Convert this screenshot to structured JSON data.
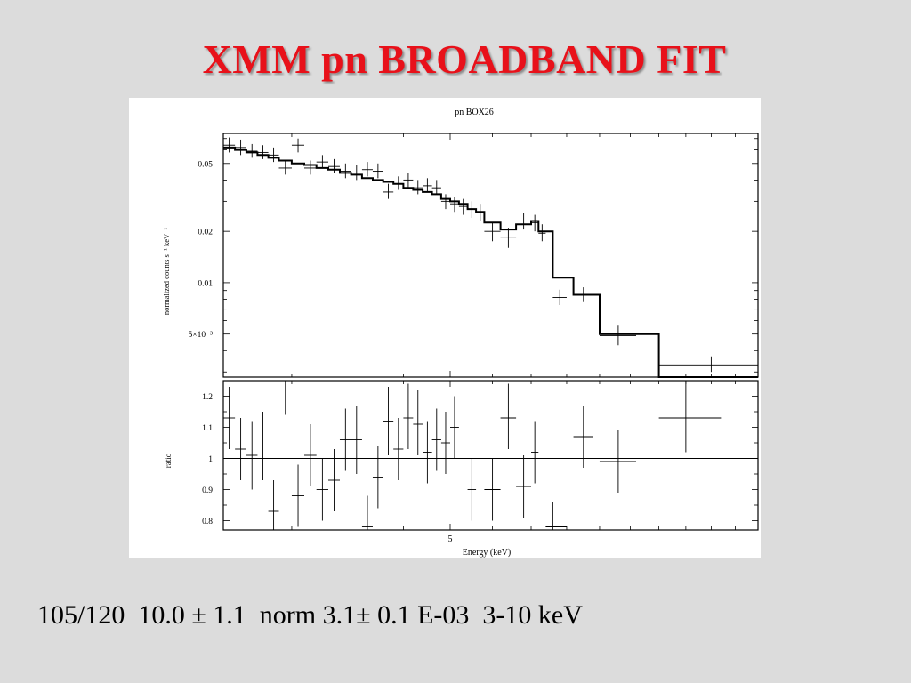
{
  "slide": {
    "title": "XMM pn BROADBAND FIT",
    "caption": "105/120  10.0 ± 1.1  norm 3.1± 0.1 E-03  3-10 keV",
    "title_color": "#e8111a",
    "background": "#dcdcdc"
  },
  "chart_data": [
    {
      "type": "scatter",
      "panel": "spectrum",
      "title": "pn BOX26",
      "xlabel": "Energy (keV)",
      "ylabel": "normalized counts s⁻¹ keV⁻¹",
      "xlim": [
        3,
        10
      ],
      "ylim": [
        0.0028,
        0.075
      ],
      "yscale": "log",
      "xscale": "log",
      "xticks": [
        {
          "value": 5,
          "label": "5"
        }
      ],
      "yticks": [
        {
          "value": 0.05,
          "label": "0.05"
        },
        {
          "value": 0.02,
          "label": "0.02"
        },
        {
          "value": 0.01,
          "label": "0.01"
        },
        {
          "value": 0.005,
          "label": "5×10⁻³"
        }
      ],
      "series": [
        {
          "kind": "data_points",
          "points": [
            {
              "x": 3.04,
              "xlo": 3.0,
              "xhi": 3.08,
              "y": 0.064,
              "ylo": 0.058,
              "yhi": 0.071
            },
            {
              "x": 3.12,
              "xlo": 3.08,
              "xhi": 3.16,
              "y": 0.062,
              "ylo": 0.056,
              "yhi": 0.069
            },
            {
              "x": 3.2,
              "xlo": 3.16,
              "xhi": 3.24,
              "y": 0.059,
              "ylo": 0.054,
              "yhi": 0.065
            },
            {
              "x": 3.28,
              "xlo": 3.24,
              "xhi": 3.32,
              "y": 0.058,
              "ylo": 0.053,
              "yhi": 0.064
            },
            {
              "x": 3.36,
              "xlo": 3.32,
              "xhi": 3.4,
              "y": 0.056,
              "ylo": 0.051,
              "yhi": 0.062
            },
            {
              "x": 3.45,
              "xlo": 3.4,
              "xhi": 3.5,
              "y": 0.047,
              "ylo": 0.043,
              "yhi": 0.052
            },
            {
              "x": 3.55,
              "xlo": 3.5,
              "xhi": 3.6,
              "y": 0.064,
              "ylo": 0.058,
              "yhi": 0.07
            },
            {
              "x": 3.65,
              "xlo": 3.6,
              "xhi": 3.7,
              "y": 0.047,
              "ylo": 0.043,
              "yhi": 0.052
            },
            {
              "x": 3.75,
              "xlo": 3.7,
              "xhi": 3.8,
              "y": 0.051,
              "ylo": 0.047,
              "yhi": 0.056
            },
            {
              "x": 3.85,
              "xlo": 3.8,
              "xhi": 3.9,
              "y": 0.048,
              "ylo": 0.044,
              "yhi": 0.053
            },
            {
              "x": 3.95,
              "xlo": 3.9,
              "xhi": 4.0,
              "y": 0.045,
              "ylo": 0.041,
              "yhi": 0.05
            },
            {
              "x": 4.05,
              "xlo": 4.0,
              "xhi": 4.1,
              "y": 0.044,
              "ylo": 0.04,
              "yhi": 0.049
            },
            {
              "x": 4.15,
              "xlo": 4.1,
              "xhi": 4.2,
              "y": 0.046,
              "ylo": 0.042,
              "yhi": 0.051
            },
            {
              "x": 4.25,
              "xlo": 4.2,
              "xhi": 4.3,
              "y": 0.045,
              "ylo": 0.041,
              "yhi": 0.05
            },
            {
              "x": 4.35,
              "xlo": 4.3,
              "xhi": 4.4,
              "y": 0.034,
              "ylo": 0.031,
              "yhi": 0.038
            },
            {
              "x": 4.45,
              "xlo": 4.4,
              "xhi": 4.5,
              "y": 0.038,
              "ylo": 0.035,
              "yhi": 0.042
            },
            {
              "x": 4.55,
              "xlo": 4.5,
              "xhi": 4.6,
              "y": 0.04,
              "ylo": 0.036,
              "yhi": 0.044
            },
            {
              "x": 4.65,
              "xlo": 4.6,
              "xhi": 4.7,
              "y": 0.036,
              "ylo": 0.033,
              "yhi": 0.04
            },
            {
              "x": 4.75,
              "xlo": 4.7,
              "xhi": 4.8,
              "y": 0.037,
              "ylo": 0.034,
              "yhi": 0.041
            },
            {
              "x": 4.85,
              "xlo": 4.8,
              "xhi": 4.9,
              "y": 0.036,
              "ylo": 0.033,
              "yhi": 0.04
            },
            {
              "x": 4.95,
              "xlo": 4.9,
              "xhi": 5.0,
              "y": 0.03,
              "ylo": 0.027,
              "yhi": 0.033
            },
            {
              "x": 5.05,
              "xlo": 5.0,
              "xhi": 5.1,
              "y": 0.029,
              "ylo": 0.026,
              "yhi": 0.032
            },
            {
              "x": 5.15,
              "xlo": 5.1,
              "xhi": 5.2,
              "y": 0.028,
              "ylo": 0.025,
              "yhi": 0.031
            },
            {
              "x": 5.25,
              "xlo": 5.2,
              "xhi": 5.3,
              "y": 0.027,
              "ylo": 0.024,
              "yhi": 0.03
            },
            {
              "x": 5.35,
              "xlo": 5.3,
              "xhi": 5.4,
              "y": 0.026,
              "ylo": 0.023,
              "yhi": 0.029
            },
            {
              "x": 5.5,
              "xlo": 5.4,
              "xhi": 5.6,
              "y": 0.02,
              "ylo": 0.0175,
              "yhi": 0.0225
            },
            {
              "x": 5.7,
              "xlo": 5.6,
              "xhi": 5.8,
              "y": 0.0185,
              "ylo": 0.016,
              "yhi": 0.021
            },
            {
              "x": 5.9,
              "xlo": 5.8,
              "xhi": 6.0,
              "y": 0.023,
              "ylo": 0.0205,
              "yhi": 0.0255
            },
            {
              "x": 6.05,
              "xlo": 6.0,
              "xhi": 6.1,
              "y": 0.0225,
              "ylo": 0.02,
              "yhi": 0.025
            },
            {
              "x": 6.15,
              "xlo": 6.1,
              "xhi": 6.2,
              "y": 0.0195,
              "ylo": 0.0175,
              "yhi": 0.022
            },
            {
              "x": 6.4,
              "xlo": 6.3,
              "xhi": 6.5,
              "y": 0.0082,
              "ylo": 0.0074,
              "yhi": 0.0091
            },
            {
              "x": 6.75,
              "xlo": 6.6,
              "xhi": 6.9,
              "y": 0.0085,
              "ylo": 0.0077,
              "yhi": 0.0094
            },
            {
              "x": 7.3,
              "xlo": 7.0,
              "xhi": 7.6,
              "y": 0.0049,
              "ylo": 0.0043,
              "yhi": 0.0056
            },
            {
              "x": 9.0,
              "xlo": 8.0,
              "xhi": 10.0,
              "y": 0.0033,
              "ylo": 0.003,
              "yhi": 0.0037
            }
          ]
        },
        {
          "kind": "model_steps",
          "bins": [
            {
              "xlo": 3.0,
              "xhi": 3.08,
              "y": 0.062
            },
            {
              "xlo": 3.08,
              "xhi": 3.16,
              "y": 0.06
            },
            {
              "xlo": 3.16,
              "xhi": 3.24,
              "y": 0.058
            },
            {
              "xlo": 3.24,
              "xhi": 3.32,
              "y": 0.056
            },
            {
              "xlo": 3.32,
              "xhi": 3.4,
              "y": 0.054
            },
            {
              "xlo": 3.4,
              "xhi": 3.5,
              "y": 0.052
            },
            {
              "xlo": 3.5,
              "xhi": 3.6,
              "y": 0.05
            },
            {
              "xlo": 3.6,
              "xhi": 3.7,
              "y": 0.049
            },
            {
              "xlo": 3.7,
              "xhi": 3.8,
              "y": 0.047
            },
            {
              "xlo": 3.8,
              "xhi": 3.9,
              "y": 0.046
            },
            {
              "xlo": 3.9,
              "xhi": 4.0,
              "y": 0.044
            },
            {
              "xlo": 4.0,
              "xhi": 4.1,
              "y": 0.043
            },
            {
              "xlo": 4.1,
              "xhi": 4.2,
              "y": 0.041
            },
            {
              "xlo": 4.2,
              "xhi": 4.3,
              "y": 0.04
            },
            {
              "xlo": 4.3,
              "xhi": 4.4,
              "y": 0.039
            },
            {
              "xlo": 4.4,
              "xhi": 4.5,
              "y": 0.038
            },
            {
              "xlo": 4.5,
              "xhi": 4.6,
              "y": 0.036
            },
            {
              "xlo": 4.6,
              "xhi": 4.7,
              "y": 0.035
            },
            {
              "xlo": 4.7,
              "xhi": 4.8,
              "y": 0.034
            },
            {
              "xlo": 4.8,
              "xhi": 4.9,
              "y": 0.033
            },
            {
              "xlo": 4.9,
              "xhi": 5.0,
              "y": 0.031
            },
            {
              "xlo": 5.0,
              "xhi": 5.1,
              "y": 0.03
            },
            {
              "xlo": 5.1,
              "xhi": 5.2,
              "y": 0.029
            },
            {
              "xlo": 5.2,
              "xhi": 5.3,
              "y": 0.027
            },
            {
              "xlo": 5.3,
              "xhi": 5.4,
              "y": 0.026
            },
            {
              "xlo": 5.4,
              "xhi": 5.6,
              "y": 0.0225
            },
            {
              "xlo": 5.6,
              "xhi": 5.8,
              "y": 0.0205
            },
            {
              "xlo": 5.8,
              "xhi": 6.0,
              "y": 0.022
            },
            {
              "xlo": 6.0,
              "xhi": 6.1,
              "y": 0.023
            },
            {
              "xlo": 6.1,
              "xhi": 6.3,
              "y": 0.02
            },
            {
              "xlo": 6.3,
              "xhi": 6.6,
              "y": 0.0107
            },
            {
              "xlo": 6.6,
              "xhi": 7.0,
              "y": 0.0085
            },
            {
              "xlo": 7.0,
              "xhi": 8.0,
              "y": 0.005
            },
            {
              "xlo": 8.0,
              "xhi": 10.0,
              "y": 0.0028
            }
          ]
        }
      ]
    },
    {
      "type": "scatter",
      "panel": "ratio",
      "xlabel": "Energy (keV)",
      "ylabel": "ratio",
      "xlim": [
        3,
        10
      ],
      "ylim": [
        0.77,
        1.25
      ],
      "xscale": "log",
      "reference_line": 1,
      "yticks": [
        {
          "value": 1.2,
          "label": "1.2"
        },
        {
          "value": 1.1,
          "label": "1.1"
        },
        {
          "value": 1,
          "label": "1"
        },
        {
          "value": 0.9,
          "label": "0.9"
        },
        {
          "value": 0.8,
          "label": "0.8"
        }
      ],
      "series": [
        {
          "kind": "ratio_points",
          "points": [
            {
              "x": 3.04,
              "xlo": 3.0,
              "xhi": 3.08,
              "y": 1.13,
              "ylo": 1.03,
              "yhi": 1.23
            },
            {
              "x": 3.12,
              "xlo": 3.08,
              "xhi": 3.16,
              "y": 1.03,
              "ylo": 0.93,
              "yhi": 1.13
            },
            {
              "x": 3.2,
              "xlo": 3.16,
              "xhi": 3.24,
              "y": 1.01,
              "ylo": 0.9,
              "yhi": 1.12
            },
            {
              "x": 3.28,
              "xlo": 3.24,
              "xhi": 3.32,
              "y": 1.04,
              "ylo": 0.93,
              "yhi": 1.15
            },
            {
              "x": 3.36,
              "xlo": 3.32,
              "xhi": 3.4,
              "y": 0.83,
              "ylo": 0.73,
              "yhi": 0.93
            },
            {
              "x": 3.45,
              "xlo": 3.4,
              "xhi": 3.5,
              "y": 1.25,
              "ylo": 1.14,
              "yhi": 1.36
            },
            {
              "x": 3.55,
              "xlo": 3.5,
              "xhi": 3.6,
              "y": 0.88,
              "ylo": 0.78,
              "yhi": 0.98
            },
            {
              "x": 3.65,
              "xlo": 3.6,
              "xhi": 3.7,
              "y": 1.01,
              "ylo": 0.91,
              "yhi": 1.11
            },
            {
              "x": 3.75,
              "xlo": 3.7,
              "xhi": 3.8,
              "y": 0.9,
              "ylo": 0.8,
              "yhi": 1.0
            },
            {
              "x": 3.85,
              "xlo": 3.8,
              "xhi": 3.9,
              "y": 0.93,
              "ylo": 0.83,
              "yhi": 1.03
            },
            {
              "x": 3.95,
              "xlo": 3.9,
              "xhi": 4.0,
              "y": 1.06,
              "ylo": 0.96,
              "yhi": 1.16
            },
            {
              "x": 4.05,
              "xlo": 4.0,
              "xhi": 4.1,
              "y": 1.06,
              "ylo": 0.95,
              "yhi": 1.17
            },
            {
              "x": 4.15,
              "xlo": 4.1,
              "xhi": 4.2,
              "y": 0.78,
              "ylo": 0.68,
              "yhi": 0.88
            },
            {
              "x": 4.25,
              "xlo": 4.2,
              "xhi": 4.3,
              "y": 0.94,
              "ylo": 0.84,
              "yhi": 1.04
            },
            {
              "x": 4.35,
              "xlo": 4.3,
              "xhi": 4.4,
              "y": 1.12,
              "ylo": 1.01,
              "yhi": 1.23
            },
            {
              "x": 4.45,
              "xlo": 4.4,
              "xhi": 4.5,
              "y": 1.03,
              "ylo": 0.93,
              "yhi": 1.13
            },
            {
              "x": 4.55,
              "xlo": 4.5,
              "xhi": 4.6,
              "y": 1.13,
              "ylo": 1.03,
              "yhi": 1.24
            },
            {
              "x": 4.65,
              "xlo": 4.6,
              "xhi": 4.7,
              "y": 1.11,
              "ylo": 1.01,
              "yhi": 1.22
            },
            {
              "x": 4.75,
              "xlo": 4.7,
              "xhi": 4.8,
              "y": 1.02,
              "ylo": 0.92,
              "yhi": 1.12
            },
            {
              "x": 4.85,
              "xlo": 4.8,
              "xhi": 4.9,
              "y": 1.06,
              "ylo": 0.96,
              "yhi": 1.16
            },
            {
              "x": 4.95,
              "xlo": 4.9,
              "xhi": 5.0,
              "y": 1.05,
              "ylo": 0.95,
              "yhi": 1.15
            },
            {
              "x": 5.05,
              "xlo": 5.0,
              "xhi": 5.1,
              "y": 1.1,
              "ylo": 1.0,
              "yhi": 1.2
            },
            {
              "x": 5.25,
              "xlo": 5.2,
              "xhi": 5.3,
              "y": 0.9,
              "ylo": 0.8,
              "yhi": 1.0
            },
            {
              "x": 5.5,
              "xlo": 5.4,
              "xhi": 5.6,
              "y": 0.9,
              "ylo": 0.8,
              "yhi": 1.0
            },
            {
              "x": 5.7,
              "xlo": 5.6,
              "xhi": 5.8,
              "y": 1.13,
              "ylo": 1.03,
              "yhi": 1.24
            },
            {
              "x": 5.9,
              "xlo": 5.8,
              "xhi": 6.0,
              "y": 0.91,
              "ylo": 0.81,
              "yhi": 1.01
            },
            {
              "x": 6.05,
              "xlo": 6.0,
              "xhi": 6.1,
              "y": 1.02,
              "ylo": 0.92,
              "yhi": 1.12
            },
            {
              "x": 6.3,
              "xlo": 6.2,
              "xhi": 6.5,
              "y": 0.78,
              "ylo": 0.7,
              "yhi": 0.86
            },
            {
              "x": 6.75,
              "xlo": 6.6,
              "xhi": 6.9,
              "y": 1.07,
              "ylo": 0.97,
              "yhi": 1.17
            },
            {
              "x": 7.3,
              "xlo": 7.0,
              "xhi": 7.6,
              "y": 0.99,
              "ylo": 0.89,
              "yhi": 1.09
            },
            {
              "x": 8.5,
              "xlo": 8.0,
              "xhi": 9.2,
              "y": 1.13,
              "ylo": 1.02,
              "yhi": 1.25
            }
          ]
        }
      ]
    }
  ]
}
